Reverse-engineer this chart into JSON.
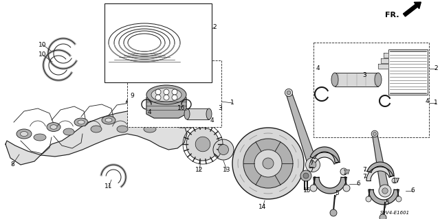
{
  "background_color": "#ffffff",
  "fig_width": 6.4,
  "fig_height": 3.19,
  "dpi": 100,
  "line_color": "#1a1a1a",
  "label_fontsize": 6.5,
  "part_number": "S9V4-E1601",
  "fr_text": "FR.",
  "gray_light": "#d8d8d8",
  "gray_mid": "#b0b0b0",
  "gray_dark": "#888888"
}
